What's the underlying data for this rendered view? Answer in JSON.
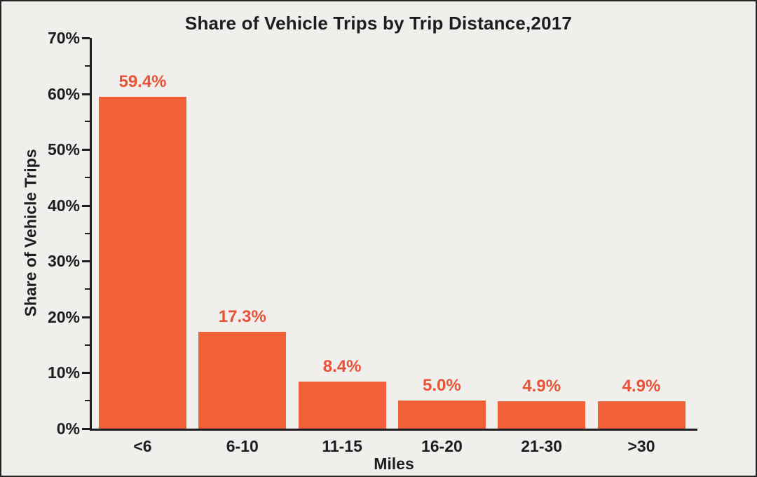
{
  "frame": {
    "background": "#F0EFEC",
    "border_color": "#262626"
  },
  "chart_data": {
    "type": "bar",
    "title": "Share of Vehicle Trips by Trip Distance,2017",
    "xlabel": "Miles",
    "ylabel": "Share of Vehicle Trips",
    "categories": [
      "<6",
      "6-10",
      "11-15",
      "16-20",
      "21-30",
      ">30"
    ],
    "values": [
      59.4,
      17.3,
      8.4,
      5.0,
      4.9,
      4.9
    ],
    "bar_labels": [
      "59.4%",
      "17.3%",
      "8.4%",
      "5.0%",
      "4.9%",
      "4.9%"
    ],
    "ylim": [
      0,
      70
    ],
    "ytick_step": 10,
    "ytick_labels": [
      "0%",
      "10%",
      "20%",
      "30%",
      "40%",
      "50%",
      "60%",
      "70%"
    ],
    "minor_tick_step": 5,
    "grid": false,
    "legend_position": "none",
    "colors": {
      "bar": "#F0613A",
      "bar_label": "#E85236",
      "axis": "#1D1C21",
      "text": "#1D1C21",
      "background": "#F0EFEC",
      "frame_border": "#262626"
    }
  }
}
